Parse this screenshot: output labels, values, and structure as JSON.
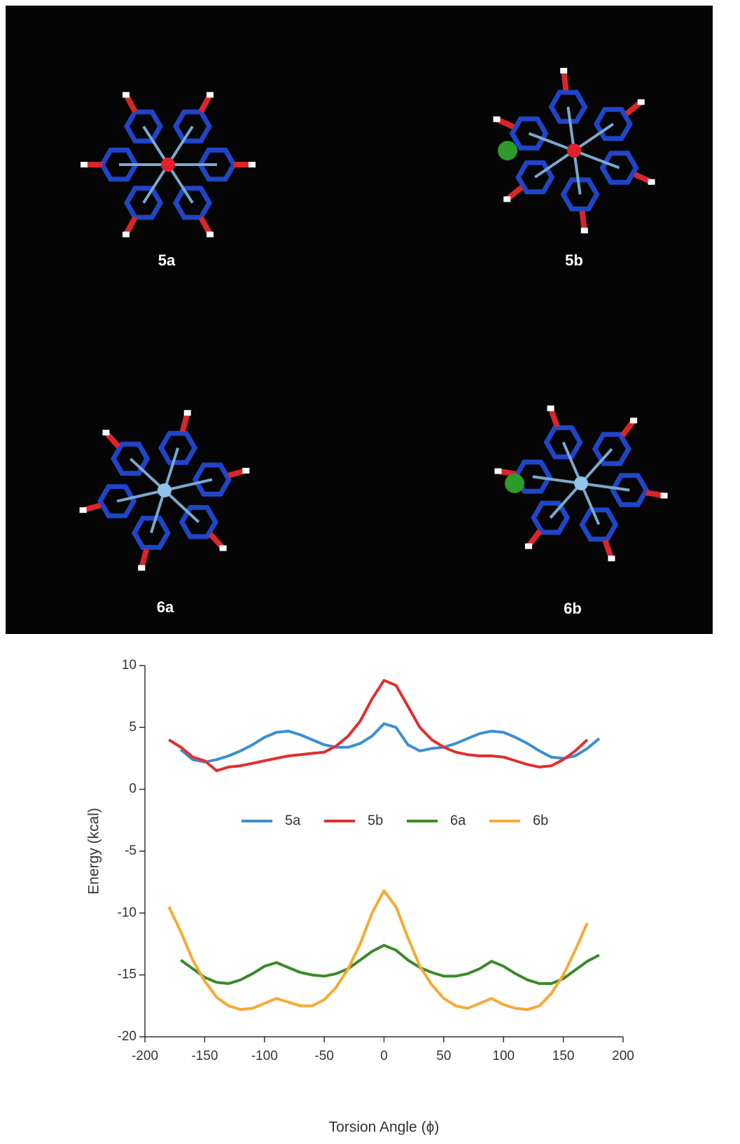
{
  "panel": {
    "labels": [
      "5a",
      "5b",
      "6a",
      "6b"
    ]
  },
  "chart_data": {
    "type": "line",
    "xlabel": "Torsion Angle (ϕ)",
    "ylabel": "Energy (kcal)",
    "x": [
      -180,
      -170,
      -160,
      -150,
      -140,
      -130,
      -120,
      -110,
      -100,
      -90,
      -80,
      -70,
      -60,
      -50,
      -40,
      -30,
      -20,
      -10,
      0,
      10,
      20,
      30,
      40,
      50,
      60,
      70,
      80,
      90,
      100,
      110,
      120,
      130,
      140,
      150,
      160,
      170,
      180
    ],
    "series": [
      {
        "name": "5a",
        "color": "#3b8fd1",
        "values": [
          null,
          3.2,
          2.4,
          2.2,
          2.4,
          2.7,
          3.1,
          3.6,
          4.2,
          4.6,
          4.7,
          4.4,
          4.0,
          3.6,
          3.4,
          3.4,
          3.7,
          4.3,
          5.3,
          5.0,
          3.6,
          3.1,
          3.3,
          3.4,
          3.7,
          4.1,
          4.5,
          4.7,
          4.6,
          4.2,
          3.7,
          3.1,
          2.6,
          2.5,
          2.7,
          3.3,
          4.1
        ]
      },
      {
        "name": "5b",
        "color": "#e0302e",
        "values": [
          4.0,
          3.4,
          2.6,
          2.3,
          1.5,
          1.8,
          1.9,
          2.1,
          2.3,
          2.5,
          2.7,
          2.8,
          2.9,
          3.0,
          3.5,
          4.3,
          5.5,
          7.3,
          8.8,
          8.4,
          6.7,
          5.0,
          4.0,
          3.4,
          3.0,
          2.8,
          2.7,
          2.7,
          2.6,
          2.3,
          2.0,
          1.8,
          1.9,
          2.4,
          3.1,
          4.0,
          null
        ]
      },
      {
        "name": "6a",
        "color": "#3a8a2a",
        "values": [
          null,
          -13.8,
          -14.5,
          -15.2,
          -15.6,
          -15.7,
          -15.4,
          -14.9,
          -14.3,
          -14.0,
          -14.4,
          -14.8,
          -15.0,
          -15.1,
          -14.9,
          -14.5,
          -13.8,
          -13.1,
          -12.6,
          -13.0,
          -13.8,
          -14.4,
          -14.8,
          -15.1,
          -15.1,
          -14.9,
          -14.5,
          -13.9,
          -14.3,
          -14.9,
          -15.4,
          -15.7,
          -15.7,
          -15.3,
          -14.6,
          -13.9,
          -13.4
        ]
      },
      {
        "name": "6b",
        "color": "#f6aa33",
        "values": [
          -9.5,
          -11.5,
          -13.8,
          -15.5,
          -16.8,
          -17.5,
          -17.8,
          -17.7,
          -17.3,
          -16.9,
          -17.2,
          -17.5,
          -17.5,
          -17.0,
          -16.0,
          -14.5,
          -12.5,
          -10.0,
          -8.2,
          -9.5,
          -12.0,
          -14.3,
          -15.8,
          -16.9,
          -17.5,
          -17.7,
          -17.3,
          -16.9,
          -17.4,
          -17.7,
          -17.8,
          -17.5,
          -16.5,
          -15.0,
          -13.0,
          -10.8,
          null
        ]
      }
    ],
    "xlim": [
      -200,
      200
    ],
    "xticks": [
      -200,
      -150,
      -100,
      -50,
      0,
      50,
      100,
      150,
      200
    ],
    "ylim": [
      -20,
      10
    ],
    "yticks": [
      -20,
      -15,
      -10,
      -5,
      0,
      5,
      10
    ],
    "grid": false,
    "legend": "center"
  }
}
